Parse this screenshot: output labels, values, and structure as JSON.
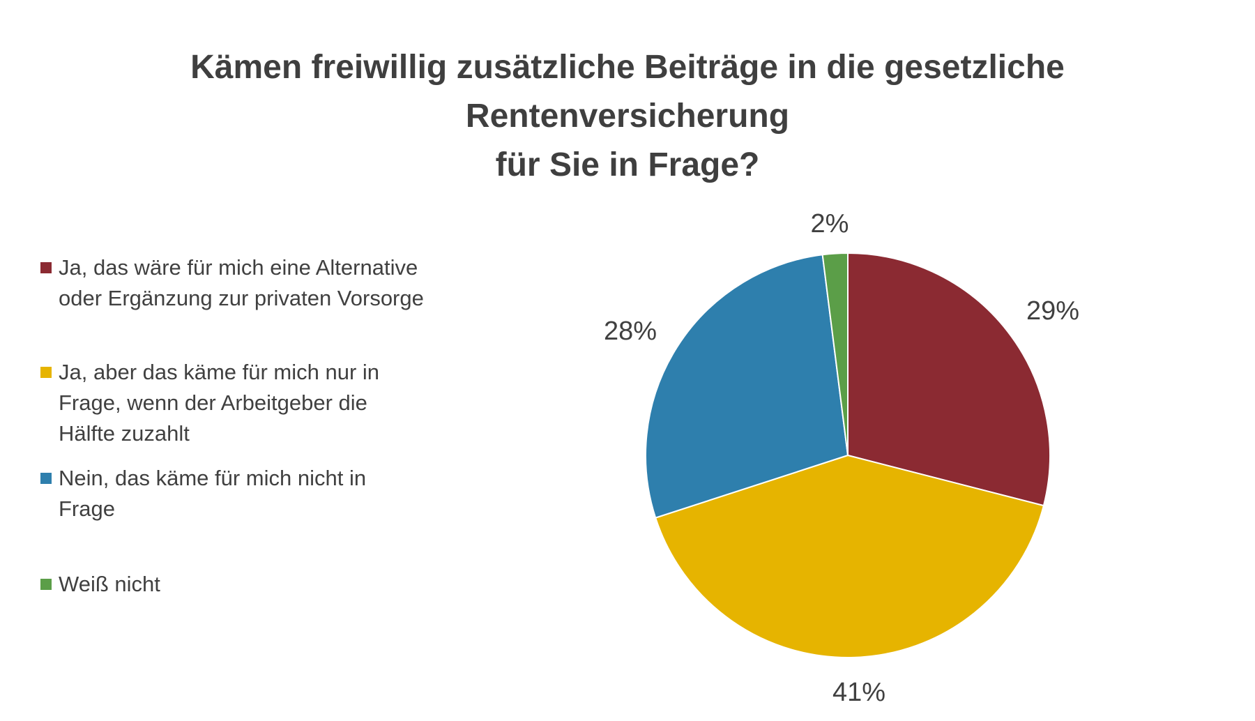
{
  "chart_data": {
    "type": "pie",
    "title_lines": [
      "Kämen freiwillig zusätzliche Beiträge in die gesetzliche",
      "Rentenversicherung",
      "für Sie in Frage?"
    ],
    "slices": [
      {
        "label": "Ja, das wäre für mich eine Alternative oder Ergänzung zur privaten Vorsorge",
        "value": 29,
        "value_label": "29%",
        "color": "#8B2A32"
      },
      {
        "label": "Ja, aber das käme für mich nur in Frage, wenn der Arbeitgeber die Hälfte zuzahlt",
        "value": 41,
        "value_label": "41%",
        "color": "#E6B400"
      },
      {
        "label": "Nein, das käme für mich nicht in Frage",
        "value": 28,
        "value_label": "28%",
        "color": "#2E7FAD"
      },
      {
        "label": "Weiß nicht",
        "value": 2,
        "value_label": "2%",
        "color": "#5B9E48"
      }
    ],
    "legend_position": "left"
  },
  "legend": {
    "items": [
      {
        "lines": [
          "Ja, das wäre für mich eine Alternative",
          "oder Ergänzung zur privaten Vorsorge"
        ]
      },
      {
        "lines": [
          "Ja, aber das käme für mich nur in",
          "Frage, wenn der Arbeitgeber die",
          "Hälfte zuzahlt"
        ]
      },
      {
        "lines": [
          "Nein, das käme für mich nicht in",
          "Frage"
        ]
      },
      {
        "lines": [
          "Weiß nicht"
        ]
      }
    ]
  }
}
